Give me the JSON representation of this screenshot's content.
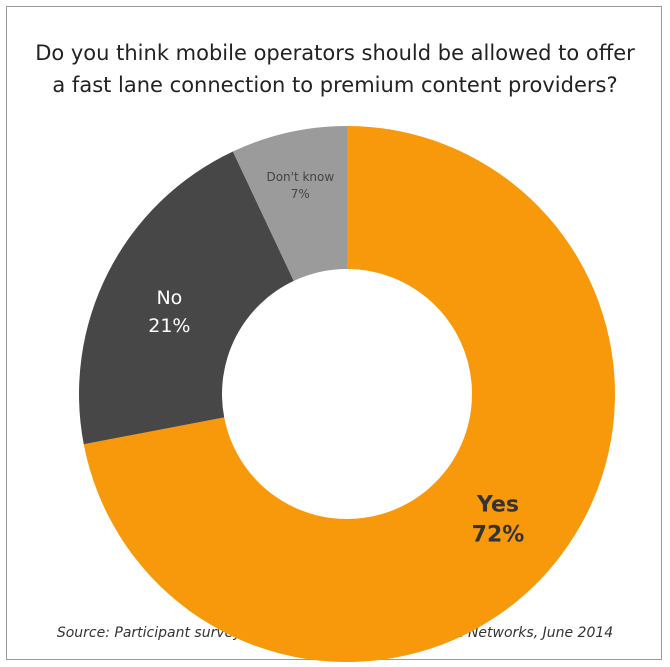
{
  "chart_data": {
    "type": "pie",
    "style": "donut",
    "title": "Do you think mobile operators should be allowed to offer a fast lane connection to premium content providers?",
    "source": "Source: Participant survey, LTE World Summit 2014, Flash Networks, June 2014",
    "slices": [
      {
        "name": "Yes",
        "value": 72,
        "value_label": "72%",
        "color": "#f7990a",
        "label_color": "#333333"
      },
      {
        "name": "No",
        "value": 21,
        "value_label": "21%",
        "color": "#474747",
        "label_color": "#ffffff"
      },
      {
        "name": "Don't know",
        "value": 7,
        "value_label": "7%",
        "color": "#9b9b9b",
        "label_color": "#444444"
      }
    ]
  }
}
